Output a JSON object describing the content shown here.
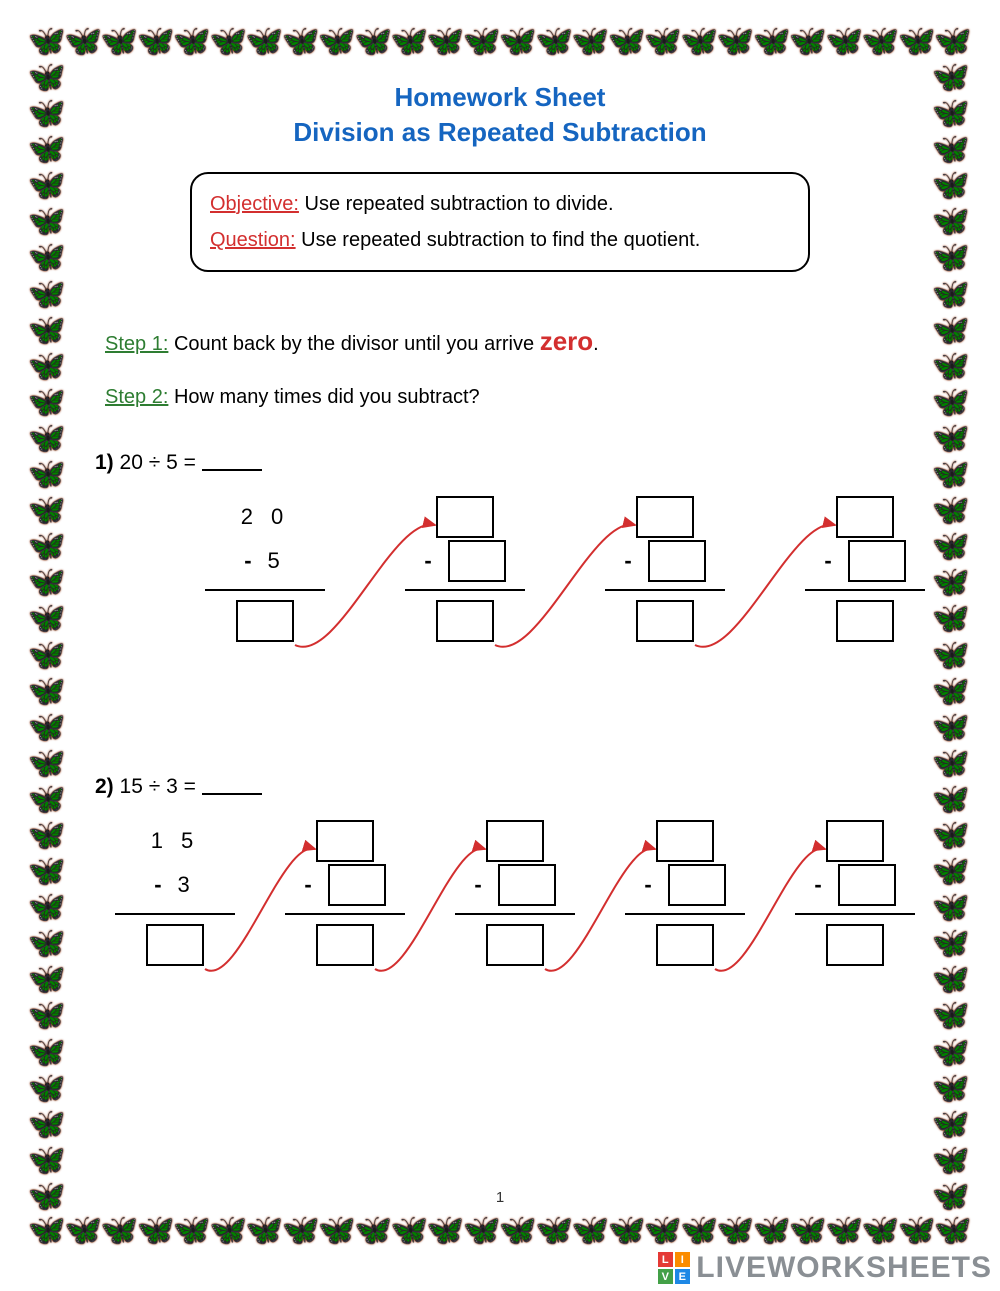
{
  "title_line1": "Homework Sheet",
  "title_line2": "Division as Repeated Subtraction",
  "objective_label": "Objective:",
  "objective_text": " Use repeated subtraction to divide.",
  "question_label": "Question:",
  "question_text": " Use repeated subtraction to find the quotient.",
  "step1_label": "Step 1:",
  "step1_text_a": " Count back by the divisor until you arrive ",
  "step1_zero": "zero",
  "step1_text_b": ".",
  "step2_label": "Step 2:",
  "step2_text": " How many times did you subtract?",
  "problem1": {
    "num": "1)",
    "expr": "  20  ÷  5 =",
    "dividend": "2 0",
    "divisor": "5",
    "columns": 4,
    "col_positions": [
      110,
      310,
      510,
      710
    ],
    "arrow_color": "#d32f2f"
  },
  "problem2": {
    "num": "2)",
    "expr": "  15  ÷  3 =",
    "dividend": "1 5",
    "divisor": "3",
    "columns": 5,
    "col_positions": [
      20,
      190,
      360,
      530,
      700
    ],
    "arrow_color": "#d32f2f"
  },
  "page_number": "1",
  "watermark": "LIVEWORKSHEETS",
  "colors": {
    "title": "#1565c0",
    "red": "#d32f2f",
    "green": "#2e7d32",
    "border_black": "#000000",
    "butterfly": "#2a0b3a",
    "wm_gray": "#8a8f94",
    "badge": [
      "#e53935",
      "#fb8c00",
      "#43a047",
      "#1e88e5"
    ]
  },
  "border": {
    "count_horiz": 26,
    "count_vert": 32
  }
}
